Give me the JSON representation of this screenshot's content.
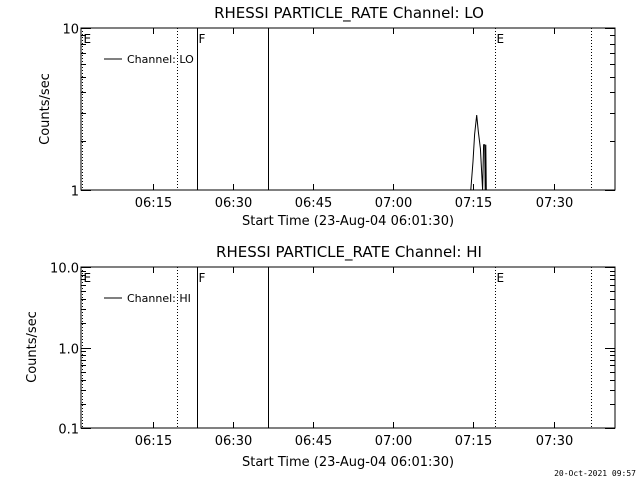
{
  "footer": {
    "timestamp": "20-Oct-2021 09:57"
  },
  "chart_data": [
    {
      "type": "line",
      "title": "RHESSI PARTICLE_RATE Channel: LO",
      "xlabel": "Start Time (23-Aug-04 06:01:30)",
      "ylabel": "Counts/sec",
      "x_range_min": [
        0,
        100
      ],
      "x_ticks": [
        {
          "min": 13.5,
          "label": "06:15"
        },
        {
          "min": 28.5,
          "label": "06:30"
        },
        {
          "min": 43.5,
          "label": "06:45"
        },
        {
          "min": 58.5,
          "label": "07:00"
        },
        {
          "min": 73.5,
          "label": "07:15"
        },
        {
          "min": 88.5,
          "label": "07:30"
        }
      ],
      "y_scale": "log",
      "ylim": [
        1,
        10
      ],
      "y_ticks": [
        {
          "v": 1,
          "label": "1"
        },
        {
          "v": 10,
          "label": "10"
        }
      ],
      "legend": {
        "position": "top-left",
        "entries": [
          "Channel: LO"
        ]
      },
      "vlines": [
        {
          "min": 0.2,
          "style": "dotted",
          "label": "E"
        },
        {
          "min": 18.0,
          "style": "dotted",
          "label": ""
        },
        {
          "min": 21.7,
          "style": "solid",
          "label": "F"
        },
        {
          "min": 35.0,
          "style": "solid",
          "label": ""
        },
        {
          "min": 77.6,
          "style": "dotted",
          "label": "E"
        },
        {
          "min": 95.5,
          "style": "dotted",
          "label": ""
        }
      ],
      "series": [
        {
          "x": [
            73.0,
            73.4,
            73.7,
            74.1,
            74.4,
            74.8,
            75.2,
            75.4,
            75.6,
            75.7,
            75.8,
            75.9
          ],
          "y": [
            1.0,
            1.5,
            2.2,
            2.9,
            2.3,
            1.8,
            1.0,
            1.9,
            1.9,
            1.0,
            1.9,
            1.0
          ]
        }
      ]
    },
    {
      "type": "line",
      "title": "RHESSI PARTICLE_RATE Channel: HI",
      "xlabel": "Start Time (23-Aug-04 06:01:30)",
      "ylabel": "Counts/sec",
      "x_range_min": [
        0,
        100
      ],
      "x_ticks": [
        {
          "min": 13.5,
          "label": "06:15"
        },
        {
          "min": 28.5,
          "label": "06:30"
        },
        {
          "min": 43.5,
          "label": "06:45"
        },
        {
          "min": 58.5,
          "label": "07:00"
        },
        {
          "min": 73.5,
          "label": "07:15"
        },
        {
          "min": 88.5,
          "label": "07:30"
        }
      ],
      "y_scale": "log",
      "ylim": [
        0.1,
        10
      ],
      "y_ticks": [
        {
          "v": 0.1,
          "label": "0.1"
        },
        {
          "v": 1,
          "label": "1.0"
        },
        {
          "v": 10,
          "label": "10.0"
        }
      ],
      "legend": {
        "position": "top-left",
        "entries": [
          "Channel: HI"
        ]
      },
      "vlines": [
        {
          "min": 0.2,
          "style": "dotted",
          "label": "E"
        },
        {
          "min": 18.0,
          "style": "dotted",
          "label": ""
        },
        {
          "min": 21.7,
          "style": "solid",
          "label": "F"
        },
        {
          "min": 35.0,
          "style": "solid",
          "label": ""
        },
        {
          "min": 77.6,
          "style": "dotted",
          "label": "E"
        },
        {
          "min": 95.5,
          "style": "dotted",
          "label": ""
        }
      ],
      "series": [
        {
          "x": [],
          "y": []
        }
      ]
    }
  ]
}
